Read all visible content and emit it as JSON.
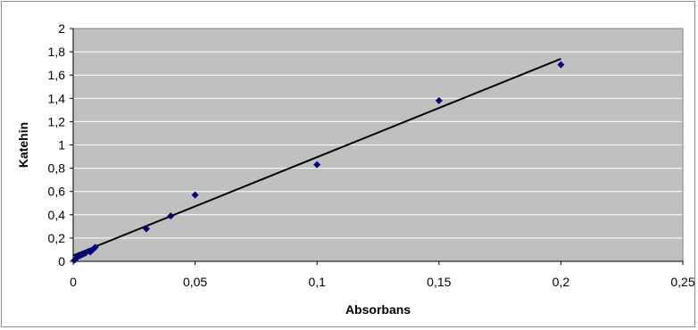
{
  "chart_data": {
    "type": "scatter",
    "title": "",
    "xlabel": "Absorbans",
    "ylabel": "Katehin",
    "xlim": [
      0,
      0.25
    ],
    "ylim": [
      0,
      2
    ],
    "x_ticks": [
      0,
      0.05,
      0.1,
      0.15,
      0.2,
      0.25
    ],
    "x_tick_labels": [
      "0",
      "0,05",
      "0,1",
      "0,15",
      "0,2",
      "0,25"
    ],
    "y_ticks": [
      0,
      0.2,
      0.4,
      0.6,
      0.8,
      1,
      1.2,
      1.4,
      1.6,
      1.8,
      2
    ],
    "y_tick_labels": [
      "0",
      "0,2",
      "0,4",
      "0,6",
      "0,8",
      "1",
      "1,2",
      "1,4",
      "1,6",
      "1,8",
      "2"
    ],
    "grid": true,
    "legend": false,
    "series": [
      {
        "x": [
          0.0005,
          0.001,
          0.0015,
          0.002,
          0.003,
          0.004,
          0.005,
          0.007,
          0.008,
          0.009,
          0.03,
          0.04,
          0.05,
          0.1,
          0.15,
          0.2
        ],
        "y": [
          0.01,
          0.02,
          0.03,
          0.04,
          0.05,
          0.06,
          0.07,
          0.08,
          0.1,
          0.12,
          0.28,
          0.39,
          0.57,
          0.83,
          1.38,
          1.69
        ],
        "marker": "diamond",
        "color": "#000080"
      }
    ],
    "trendline": {
      "type": "linear",
      "x": [
        0,
        0.2
      ],
      "y": [
        0.05,
        1.74
      ],
      "color": "#000000"
    },
    "plot_background": "#c0c0c0",
    "grid_color": "#ffffff"
  }
}
